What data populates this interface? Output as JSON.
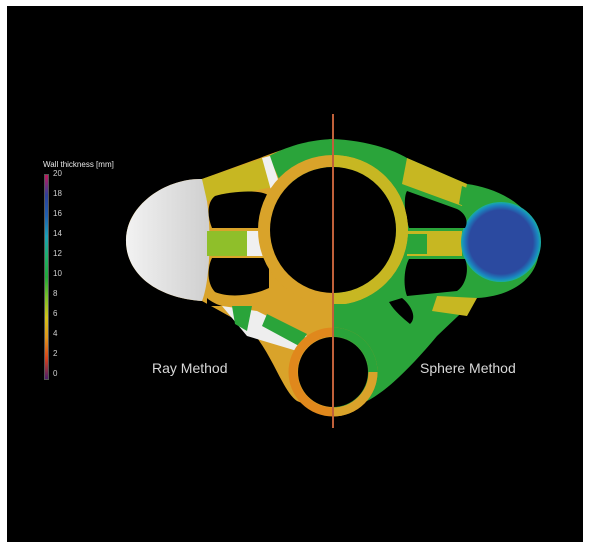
{
  "legend": {
    "title": "Wall thickness [mm]",
    "ticks": [
      "20",
      "18",
      "16",
      "14",
      "12",
      "10",
      "8",
      "6",
      "4",
      "2",
      "0"
    ],
    "gradient_colors": [
      "#c2185b",
      "#2b3f9a",
      "#1e5fb0",
      "#1aa0b8",
      "#1eb06a",
      "#22a93a",
      "#7cc02a",
      "#d4c21a",
      "#e0941c",
      "#d6401c",
      "#4a1d6b"
    ]
  },
  "labels": {
    "left_method": "Ray Method",
    "right_method": "Sphere Method"
  },
  "colors": {
    "background": "#000000",
    "divider": "#c0603a",
    "orange": "#e39a1e",
    "yellow": "#c8b820",
    "green": "#22a33c",
    "blue": "#2b4aa0",
    "white_region": "#e6e6e6"
  }
}
